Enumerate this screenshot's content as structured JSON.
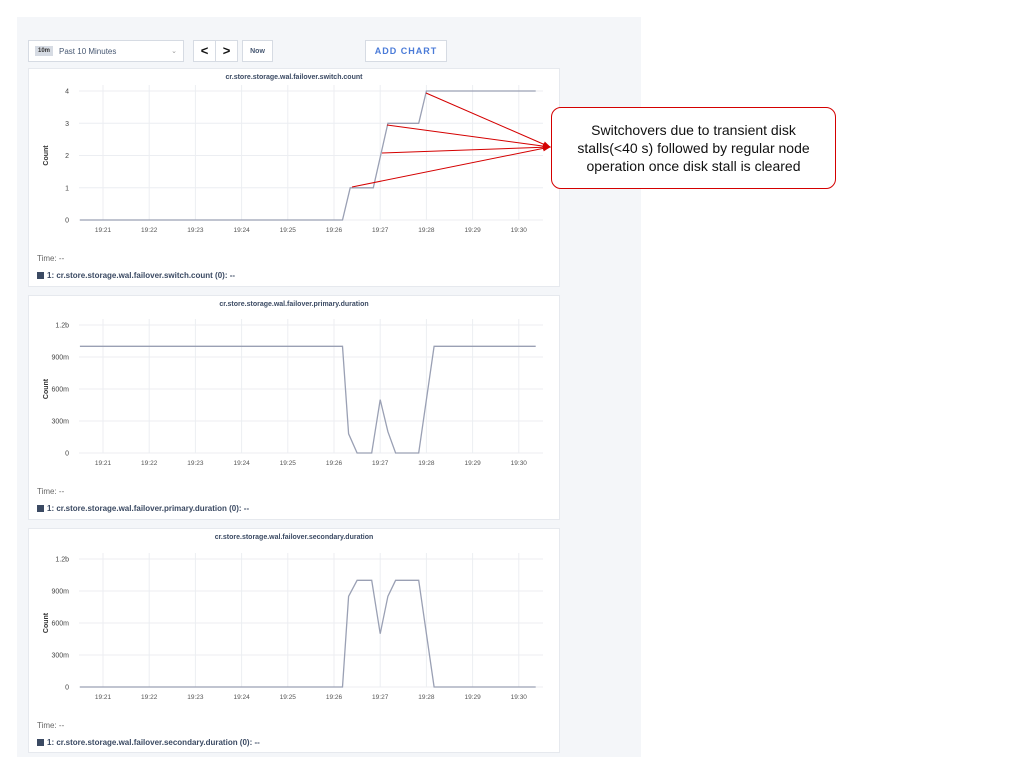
{
  "toolbar": {
    "range_badge": "10m",
    "range_label": "Past 10 Minutes",
    "prev": "<",
    "next": ">",
    "now": "Now",
    "add_chart": "ADD CHART"
  },
  "annotation": {
    "text": "Switchovers due to transient disk stalls(<40 s) followed by regular node operation once disk stall is cleared",
    "color": "#d40000"
  },
  "chart_data": [
    {
      "type": "line",
      "title": "cr.store.storage.wal.failover.switch.count",
      "ylabel": "Count",
      "yticks": [
        "0",
        "1",
        "2",
        "3",
        "4"
      ],
      "ylim": [
        0,
        4
      ],
      "xticks": [
        "19:21",
        "19:22",
        "19:23",
        "19:24",
        "19:25",
        "19:26",
        "19:27",
        "19:28",
        "19:29",
        "19:30"
      ],
      "grid": true,
      "time_label": "Time:  --",
      "legend": "1: cr.store.storage.wal.failover.switch.count (0):  --",
      "series": [
        {
          "x": [
            "19:20:30",
            "19:26:11",
            "19:26:21",
            "19:26:51",
            "19:27:10",
            "19:27:50",
            "19:28:00",
            "19:30:22"
          ],
          "y": [
            0,
            0,
            1,
            1,
            3,
            3,
            4,
            4
          ]
        }
      ]
    },
    {
      "type": "line",
      "title": "cr.store.storage.wal.failover.primary.duration",
      "ylabel": "Count",
      "yticks": [
        "0",
        "300m",
        "600m",
        "900m",
        "1.2b"
      ],
      "ylim": [
        0,
        1.2
      ],
      "xticks": [
        "19:21",
        "19:22",
        "19:23",
        "19:24",
        "19:25",
        "19:26",
        "19:27",
        "19:28",
        "19:29",
        "19:30"
      ],
      "grid": true,
      "time_label": "Time:  --",
      "legend": "1: cr.store.storage.wal.failover.primary.duration (0):  --",
      "series": [
        {
          "x": [
            "19:20:30",
            "19:26:11",
            "19:26:19",
            "19:26:30",
            "19:26:49",
            "19:27:00",
            "19:27:10",
            "19:27:20",
            "19:27:50",
            "19:28:10",
            "19:30:22"
          ],
          "y": [
            1,
            1,
            0.18,
            0,
            0,
            0.5,
            0.2,
            0,
            0,
            1,
            1
          ]
        }
      ]
    },
    {
      "type": "line",
      "title": "cr.store.storage.wal.failover.secondary.duration",
      "ylabel": "Count",
      "yticks": [
        "0",
        "300m",
        "600m",
        "900m",
        "1.2b"
      ],
      "ylim": [
        0,
        1.2
      ],
      "xticks": [
        "19:21",
        "19:22",
        "19:23",
        "19:24",
        "19:25",
        "19:26",
        "19:27",
        "19:28",
        "19:29",
        "19:30"
      ],
      "grid": true,
      "time_label": "Time:  --",
      "legend": "1: cr.store.storage.wal.failover.secondary.duration (0):  --",
      "series": [
        {
          "x": [
            "19:20:30",
            "19:26:11",
            "19:26:19",
            "19:26:30",
            "19:26:49",
            "19:27:00",
            "19:27:10",
            "19:27:20",
            "19:27:50",
            "19:28:10",
            "19:30:22"
          ],
          "y": [
            0,
            0,
            0.85,
            1,
            1,
            0.5,
            0.85,
            1,
            1,
            0,
            0
          ]
        }
      ]
    }
  ]
}
